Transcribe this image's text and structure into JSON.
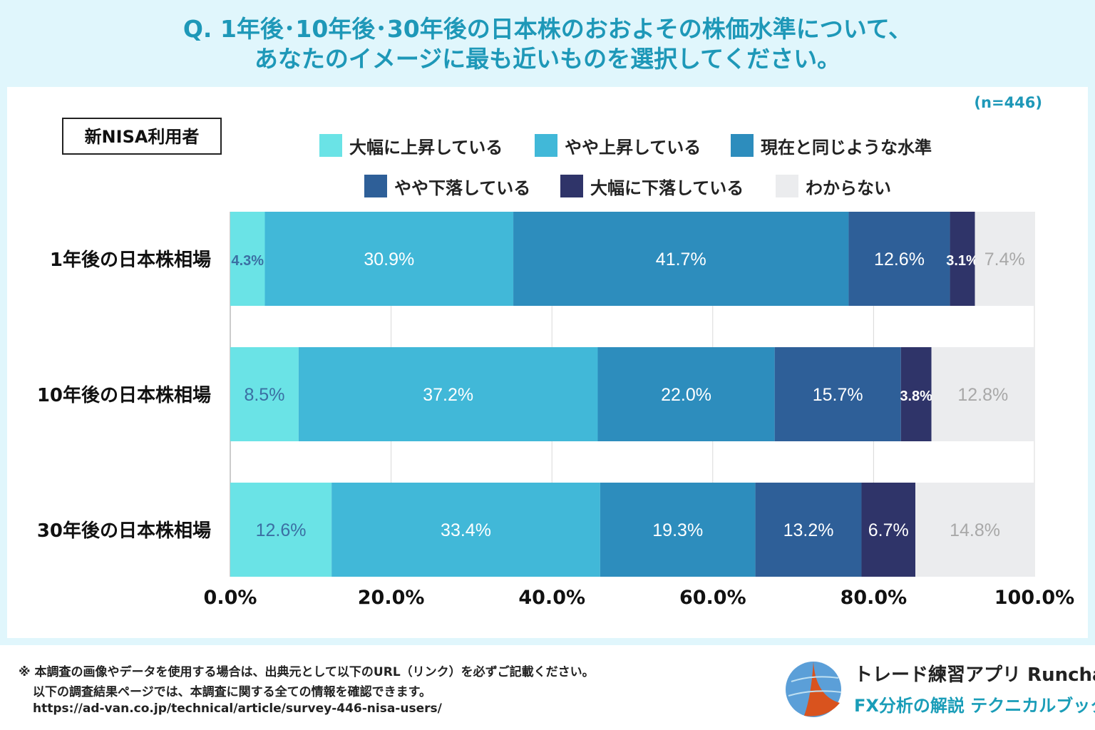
{
  "title": {
    "line1": "Q. 1年後･10年後･30年後の日本株のおおよその株価水準について、",
    "line2": "あなたのイメージに最も近いものを選択してください。"
  },
  "chart_data": {
    "type": "bar",
    "orientation": "horizontal-stacked-100",
    "sample": "(n=446)",
    "group_label": "新NISA利用者",
    "categories": [
      "1年後の日本株相場",
      "10年後の日本株相場",
      "30年後の日本株相場"
    ],
    "series": [
      {
        "name": "大幅に上昇している",
        "color": "#6ae3e6",
        "label_color": "#3b6fa3",
        "values": [
          4.3,
          8.5,
          12.6
        ]
      },
      {
        "name": "やや上昇している",
        "color": "#41b8d8",
        "label_color": "#ffffff",
        "values": [
          30.9,
          37.2,
          33.4
        ]
      },
      {
        "name": "現在と同じような水準",
        "color": "#2d8dbd",
        "label_color": "#ffffff",
        "values": [
          41.7,
          22.0,
          19.3
        ]
      },
      {
        "name": "やや下落している",
        "color": "#2e5f98",
        "label_color": "#ffffff",
        "values": [
          12.6,
          15.7,
          13.2
        ]
      },
      {
        "name": "大幅に下落している",
        "color": "#2f3469",
        "label_color": "#ffffff",
        "values": [
          3.1,
          3.8,
          6.7
        ]
      },
      {
        "name": "わからない",
        "color": "#ebecee",
        "label_color": "#a8a8a8",
        "values": [
          7.4,
          12.8,
          14.8
        ]
      }
    ],
    "xticks": [
      "0.0%",
      "20.0%",
      "40.0%",
      "60.0%",
      "80.0%",
      "100.0%"
    ],
    "xlim": [
      0,
      100
    ],
    "legend_placement": "top"
  },
  "footer": {
    "note1": "※ 本調査の画像やデータを使用する場合は、出典元として以下のURL（リンク）を必ずご記載ください。",
    "note2": "以下の調査結果ページでは、本調査に関する全ての情報を確認できます。",
    "url": "https://ad-van.co.jp/technical/article/survey-446-nisa-users/",
    "brand1": "トレード練習アプリ Runcha",
    "brand2": "FX分析の解説 テクニカルブック"
  }
}
